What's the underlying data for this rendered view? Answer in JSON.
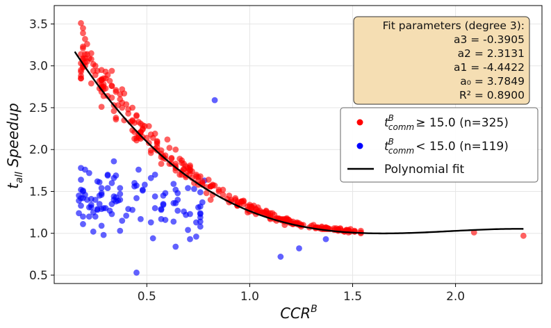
{
  "chart_data": {
    "type": "scatter",
    "xlabel": "CCR",
    "xlabel_sup": "B",
    "ylabel_sub_prefix": "t",
    "ylabel_sub": "all",
    "ylabel_suffix": " Speedup",
    "xlim": [
      0.05,
      2.42
    ],
    "ylim": [
      0.4,
      3.72
    ],
    "x_ticks": [
      0.5,
      1.0,
      1.5,
      2.0
    ],
    "x_tick_labels": [
      "0.5",
      "1.0",
      "1.5",
      "2.0"
    ],
    "y_ticks": [
      0.5,
      1.0,
      1.5,
      2.0,
      2.5,
      3.0,
      3.5
    ],
    "y_tick_labels": [
      "0.5",
      "1.0",
      "1.5",
      "2.0",
      "2.5",
      "3.0",
      "3.5"
    ],
    "grid": true,
    "fit_box": {
      "title": "Fit parameters (degree 3):",
      "lines": [
        "a3 = -0.3905",
        "a2 = 2.3131",
        "a1 = -4.4422",
        "a₀ = 3.7849",
        "R² = 0.8900"
      ]
    },
    "fit": {
      "label": "Polynomial fit",
      "coefficients": {
        "a3": -0.3905,
        "a2": 2.3131,
        "a1": -4.4422,
        "a0": 3.7849
      },
      "x_range": [
        0.15,
        2.33
      ],
      "color": "#000000"
    },
    "series": [
      {
        "name": "high",
        "legend_math": {
          "t": "t",
          "sup": "B",
          "sub": "comm",
          "rest": "≥ 15.0 (n=325)"
        },
        "color": "#ff0000",
        "count": 325,
        "points": []
      },
      {
        "name": "low",
        "legend_math": {
          "t": "t",
          "sup": "B",
          "sub": "comm",
          "rest": "< 15.0 (n=119)"
        },
        "color": "#0000ff",
        "count": 119,
        "points": []
      }
    ]
  }
}
